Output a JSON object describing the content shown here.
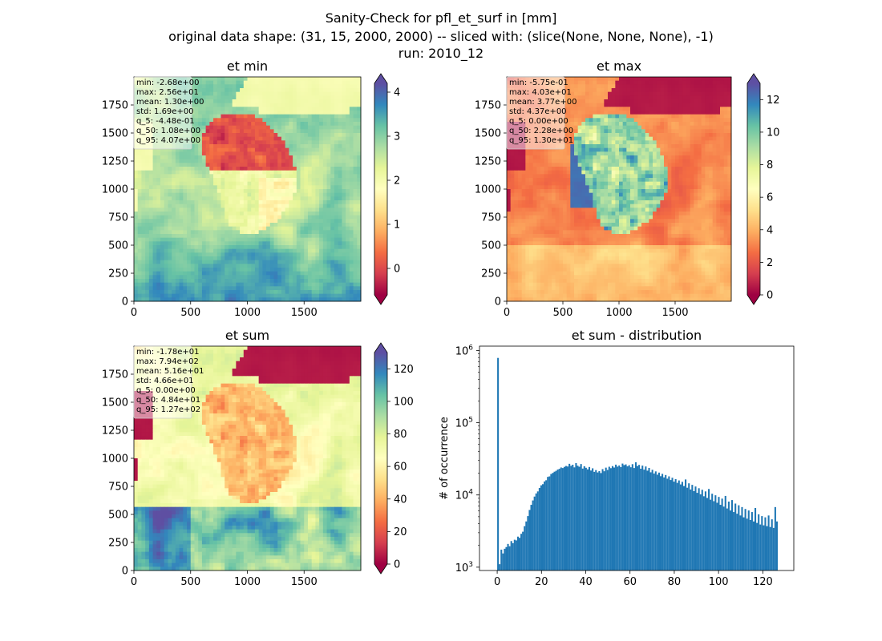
{
  "suptitle": {
    "line1": "Sanity-Check for pfl_et_surf in [mm]",
    "line2": "original data shape: (31, 15, 2000, 2000) -- sliced with: (slice(None, None, None), -1)",
    "line3": "run: 2010_12"
  },
  "colors": {
    "histogram_bar": "#1f77b4",
    "ocean_low": "#9e0142"
  },
  "chart_data": [
    {
      "type": "heatmap",
      "title": "et min",
      "colormap": "Spectral",
      "xlim": [
        0,
        2000
      ],
      "ylim": [
        0,
        2000
      ],
      "xticks": [
        0,
        500,
        1000,
        1500
      ],
      "yticks": [
        0,
        250,
        500,
        750,
        1000,
        1250,
        1500,
        1750
      ],
      "colorbar": {
        "range": [
          -0.6,
          4.2
        ],
        "ticks": [
          0,
          1,
          2,
          3,
          4
        ],
        "extend": "both"
      },
      "stats": [
        "min: -2.68e+00",
        "max: 2.56e+01",
        "mean: 1.30e+00",
        "std: 1.69e+00",
        "q_5: -4.48e-01",
        "q_50: 1.08e+00",
        "q_95: 4.07e+00"
      ]
    },
    {
      "type": "heatmap",
      "title": "et max",
      "colormap": "Spectral",
      "xlim": [
        0,
        2000
      ],
      "ylim": [
        0,
        2000
      ],
      "xticks": [
        0,
        500,
        1000,
        1500
      ],
      "yticks": [
        0,
        250,
        500,
        750,
        1000,
        1250,
        1500,
        1750
      ],
      "colorbar": {
        "range": [
          0,
          13
        ],
        "ticks": [
          0,
          2,
          4,
          6,
          8,
          10,
          12
        ],
        "extend": "both"
      },
      "stats": [
        "min: -5.75e-01",
        "max: 4.03e+01",
        "mean: 3.77e+00",
        "std: 4.37e+00",
        "q_5: 0.00e+00",
        "q_50: 2.28e+00",
        "q_95: 1.30e+01"
      ]
    },
    {
      "type": "heatmap",
      "title": "et sum",
      "colormap": "Spectral",
      "xlim": [
        0,
        2000
      ],
      "ylim": [
        0,
        2000
      ],
      "xticks": [
        0,
        500,
        1000,
        1500
      ],
      "yticks": [
        0,
        250,
        500,
        750,
        1000,
        1250,
        1500,
        1750
      ],
      "colorbar": {
        "range": [
          0,
          130
        ],
        "ticks": [
          0,
          20,
          40,
          60,
          80,
          100,
          120
        ],
        "extend": "both"
      },
      "stats": [
        "min: -1.78e+01",
        "max: 7.94e+02",
        "mean: 5.16e+01",
        "std: 4.66e+01",
        "q_5: 0.00e+00",
        "q_50: 4.84e+01",
        "q_95: 1.27e+02"
      ]
    },
    {
      "type": "bar",
      "title": "et sum - distribution",
      "ylabel": "# of occurrence",
      "yscale": "log",
      "xlim": [
        -8,
        134
      ],
      "ylim": [
        900,
        1150000
      ],
      "xticks": [
        0,
        20,
        40,
        60,
        80,
        100,
        120
      ],
      "yticks": [
        1000,
        10000,
        100000,
        1000000
      ],
      "ytick_labels": [
        [
          "10",
          "3"
        ],
        [
          "10",
          "4"
        ],
        [
          "10",
          "5"
        ],
        [
          "10",
          "6"
        ]
      ],
      "bin_width": 0.75,
      "bins": [
        [
          0.0,
          790000
        ],
        [
          0.75,
          1100
        ],
        [
          1.5,
          1750
        ],
        [
          2.25,
          1550
        ],
        [
          3.0,
          1800
        ],
        [
          3.75,
          1900
        ],
        [
          4.5,
          2100
        ],
        [
          5.25,
          1950
        ],
        [
          6.0,
          2300
        ],
        [
          6.75,
          2150
        ],
        [
          7.5,
          2400
        ],
        [
          8.25,
          2350
        ],
        [
          9.0,
          2650
        ],
        [
          9.75,
          2550
        ],
        [
          10.5,
          2900
        ],
        [
          11.25,
          3100
        ],
        [
          12.0,
          3700
        ],
        [
          12.75,
          4300
        ],
        [
          13.5,
          5100
        ],
        [
          14.25,
          6200
        ],
        [
          15.0,
          7300
        ],
        [
          15.75,
          8400
        ],
        [
          16.5,
          9500
        ],
        [
          17.25,
          10500
        ],
        [
          18.0,
          11200
        ],
        [
          18.75,
          12500
        ],
        [
          19.5,
          13600
        ],
        [
          20.25,
          14100
        ],
        [
          21.0,
          15400
        ],
        [
          21.75,
          16000
        ],
        [
          22.5,
          17800
        ],
        [
          23.25,
          18100
        ],
        [
          24.0,
          19500
        ],
        [
          24.75,
          20200
        ],
        [
          25.5,
          21000
        ],
        [
          26.25,
          21600
        ],
        [
          27.0,
          22500
        ],
        [
          27.75,
          23000
        ],
        [
          28.5,
          24000
        ],
        [
          29.25,
          23600
        ],
        [
          30.0,
          24500
        ],
        [
          30.75,
          25200
        ],
        [
          31.5,
          24800
        ],
        [
          32.25,
          27000
        ],
        [
          33.0,
          25300
        ],
        [
          33.75,
          26200
        ],
        [
          34.5,
          24100
        ],
        [
          35.25,
          27600
        ],
        [
          36.0,
          25400
        ],
        [
          36.75,
          24600
        ],
        [
          37.5,
          26800
        ],
        [
          38.25,
          23200
        ],
        [
          39.0,
          25000
        ],
        [
          39.75,
          23800
        ],
        [
          40.5,
          22600
        ],
        [
          41.25,
          24400
        ],
        [
          42.0,
          21800
        ],
        [
          42.75,
          23400
        ],
        [
          43.5,
          20900
        ],
        [
          44.25,
          22100
        ],
        [
          45.0,
          20500
        ],
        [
          45.75,
          21400
        ],
        [
          46.5,
          20100
        ],
        [
          47.25,
          22800
        ],
        [
          48.0,
          21300
        ],
        [
          48.75,
          23900
        ],
        [
          49.5,
          22200
        ],
        [
          50.25,
          24600
        ],
        [
          51.0,
          23500
        ],
        [
          51.75,
          25100
        ],
        [
          52.5,
          24000
        ],
        [
          53.25,
          26300
        ],
        [
          54.0,
          24700
        ],
        [
          54.75,
          25600
        ],
        [
          55.5,
          24300
        ],
        [
          56.25,
          27200
        ],
        [
          57.0,
          25900
        ],
        [
          57.75,
          26500
        ],
        [
          58.5,
          24900
        ],
        [
          59.25,
          25800
        ],
        [
          60.0,
          24200
        ],
        [
          60.75,
          26700
        ],
        [
          61.5,
          23600
        ],
        [
          62.25,
          28400
        ],
        [
          63.0,
          25200
        ],
        [
          63.75,
          26100
        ],
        [
          64.5,
          23100
        ],
        [
          65.25,
          25500
        ],
        [
          66.0,
          22400
        ],
        [
          66.75,
          24800
        ],
        [
          67.5,
          21700
        ],
        [
          68.25,
          23700
        ],
        [
          69.0,
          20600
        ],
        [
          69.75,
          22300
        ],
        [
          70.5,
          19800
        ],
        [
          71.25,
          21200
        ],
        [
          72.0,
          19100
        ],
        [
          72.75,
          20400
        ],
        [
          73.5,
          18200
        ],
        [
          74.25,
          19600
        ],
        [
          75.0,
          17500
        ],
        [
          75.75,
          18900
        ],
        [
          76.5,
          16800
        ],
        [
          77.25,
          18100
        ],
        [
          78.0,
          16100
        ],
        [
          78.75,
          17300
        ],
        [
          79.5,
          15300
        ],
        [
          80.25,
          16600
        ],
        [
          81.0,
          14700
        ],
        [
          81.75,
          15900
        ],
        [
          82.5,
          14000
        ],
        [
          83.25,
          15200
        ],
        [
          84.0,
          13300
        ],
        [
          84.75,
          16400
        ],
        [
          85.5,
          12600
        ],
        [
          86.25,
          14500
        ],
        [
          87.0,
          11900
        ],
        [
          87.75,
          13800
        ],
        [
          88.5,
          11300
        ],
        [
          89.25,
          13100
        ],
        [
          90.0,
          10700
        ],
        [
          90.75,
          12400
        ],
        [
          91.5,
          10200
        ],
        [
          92.25,
          11800
        ],
        [
          93.0,
          9600
        ],
        [
          93.75,
          11200
        ],
        [
          94.5,
          9100
        ],
        [
          95.25,
          12100
        ],
        [
          96.0,
          8600
        ],
        [
          96.75,
          10400
        ],
        [
          97.5,
          8200
        ],
        [
          98.25,
          9900
        ],
        [
          99.0,
          7800
        ],
        [
          99.75,
          9400
        ],
        [
          100.5,
          7300
        ],
        [
          101.25,
          8900
        ],
        [
          102.0,
          6900
        ],
        [
          102.75,
          9700
        ],
        [
          103.5,
          6500
        ],
        [
          104.25,
          8100
        ],
        [
          105.0,
          6100
        ],
        [
          105.75,
          8500
        ],
        [
          106.5,
          5800
        ],
        [
          107.25,
          7600
        ],
        [
          108.0,
          5500
        ],
        [
          108.75,
          7200
        ],
        [
          109.5,
          5200
        ],
        [
          110.25,
          6800
        ],
        [
          111.0,
          4900
        ],
        [
          111.75,
          6400
        ],
        [
          112.5,
          4700
        ],
        [
          113.25,
          6100
        ],
        [
          114.0,
          4500
        ],
        [
          114.75,
          5800
        ],
        [
          115.5,
          4300
        ],
        [
          116.25,
          6600
        ],
        [
          117.0,
          4100
        ],
        [
          117.75,
          5400
        ],
        [
          118.5,
          3900
        ],
        [
          119.25,
          5100
        ],
        [
          120.0,
          3800
        ],
        [
          120.75,
          4900
        ],
        [
          121.5,
          3700
        ],
        [
          122.25,
          5200
        ],
        [
          123.0,
          3600
        ],
        [
          123.75,
          4600
        ],
        [
          124.5,
          3500
        ],
        [
          125.25,
          6800
        ],
        [
          126.0,
          4300
        ]
      ]
    }
  ]
}
